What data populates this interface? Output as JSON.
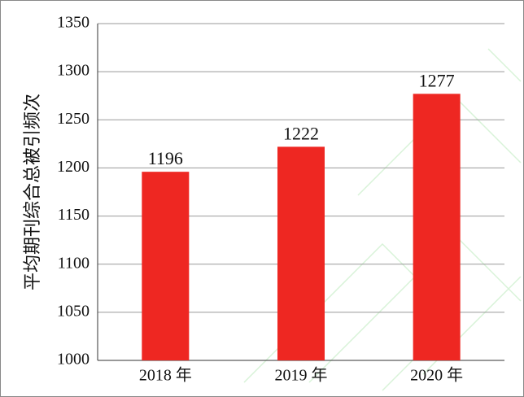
{
  "chart_data": {
    "type": "bar",
    "y_label": "平均期刊综合总被引频次",
    "categories": [
      "2018 年",
      "2019 年",
      "2020 年"
    ],
    "values": [
      1196,
      1222,
      1277
    ],
    "color": "#ee2722",
    "ylim": [
      1000,
      1350
    ],
    "yticks": [
      1000,
      1050,
      1100,
      1150,
      1200,
      1250,
      1300,
      1350
    ],
    "grid": true
  }
}
